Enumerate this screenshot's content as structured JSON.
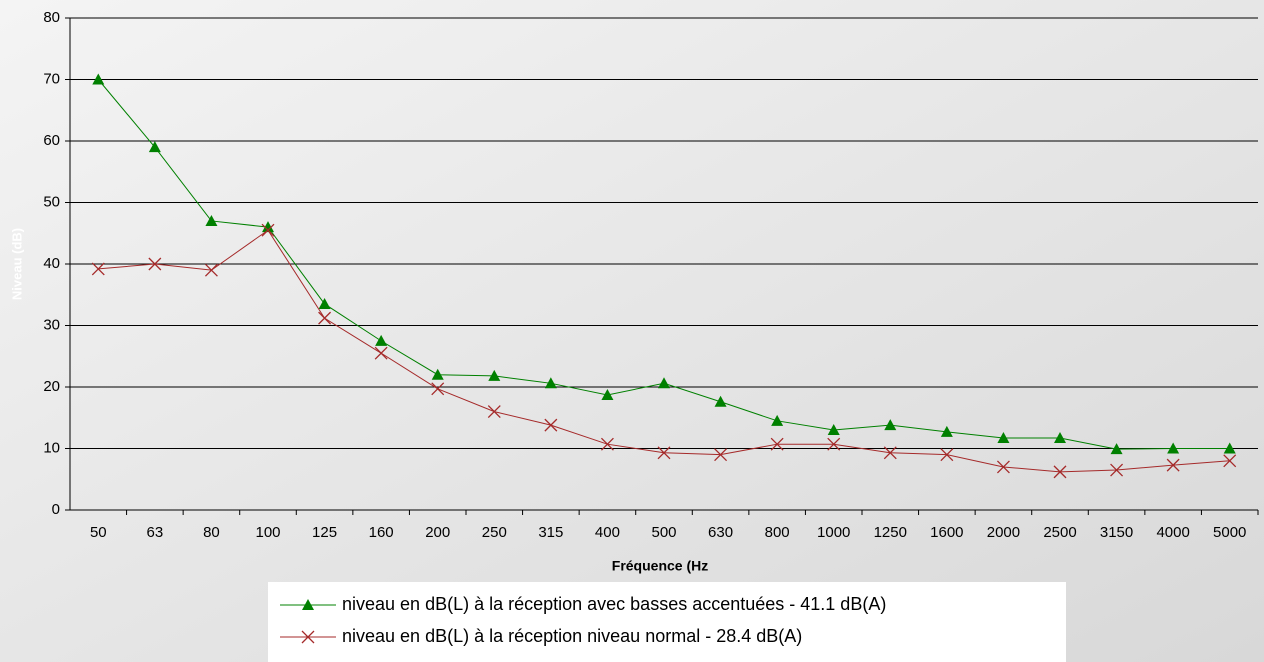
{
  "chart_data": {
    "type": "line",
    "x_label": "Fréquence    (Hz",
    "y_label": "Niveau (dB)",
    "categories": [
      "50",
      "63",
      "80",
      "100",
      "125",
      "160",
      "200",
      "250",
      "315",
      "400",
      "500",
      "630",
      "800",
      "1000",
      "1250",
      "1600",
      "2000",
      "2500",
      "3150",
      "4000",
      "5000"
    ],
    "series": [
      {
        "name": "niveau en dB(L) à la réception avec basses accentuées  - 41.1 dB(A)",
        "color": "#008000",
        "marker": "triangle",
        "values": [
          70,
          59,
          47,
          46,
          33.5,
          27.5,
          22,
          21.8,
          20.6,
          18.7,
          20.6,
          17.6,
          14.5,
          13,
          13.8,
          12.7,
          11.7,
          11.7,
          9.9,
          10,
          10
        ]
      },
      {
        "name": "niveau en dB(L) à la réception niveau normal  - 28.4 dB(A)",
        "color": "#a52a2a",
        "marker": "x",
        "values": [
          39.2,
          40,
          39,
          45.5,
          31.2,
          25.5,
          19.7,
          16,
          13.8,
          10.7,
          9.3,
          9,
          10.7,
          10.7,
          9.3,
          9,
          7,
          6.2,
          6.5,
          7.3,
          8
        ]
      }
    ],
    "ylim": [
      0,
      80
    ],
    "yticks": [
      0,
      10,
      20,
      30,
      40,
      50,
      60,
      70,
      80
    ],
    "grid": true
  }
}
